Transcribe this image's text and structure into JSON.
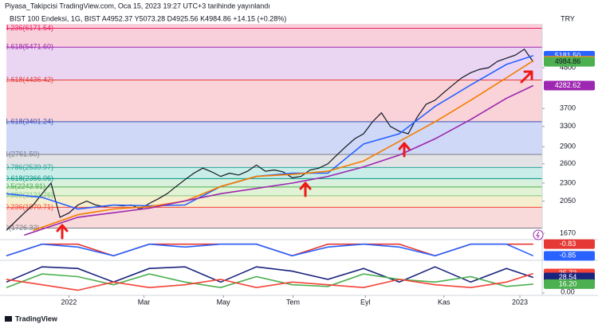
{
  "header": {
    "publisher": "Piyasa_Takipcisi TradingView.com, Oca 15, 2023 19:27 UTC+3 tarihinde yayınlandı",
    "symbol_line": "BIST 100 Endeksi, 1G, BIST A4952.37 Y5073.28 D4925.56 K4984.86 +14.15 (+0.28%)"
  },
  "footer": {
    "brand": "TradingView"
  },
  "chart_data": {
    "type": "line",
    "log_scale": true,
    "grid": false,
    "currency": "TRY",
    "xlim": [
      0,
      60
    ],
    "xticks": [
      {
        "value": 7,
        "label": "2022"
      },
      {
        "value": 15.4,
        "label": "Mar"
      },
      {
        "value": 24.3,
        "label": "May"
      },
      {
        "value": 32.1,
        "label": "Tem"
      },
      {
        "value": 40.2,
        "label": "Eyl"
      },
      {
        "value": 49,
        "label": "Kas"
      },
      {
        "value": 57.5,
        "label": "2023"
      }
    ],
    "ylim": [
      1612,
      6346
    ],
    "yticks": [
      1670,
      2050,
      2300,
      2600,
      2900,
      3300,
      3700,
      4800
    ],
    "fib_levels": [
      {
        "value": 6171.54,
        "label": "4.236(6171.54)",
        "color": "#e91e63",
        "band_color": "#f8d0db"
      },
      {
        "value": 5471.6,
        "label": "3.618(5471.60)",
        "color": "#9c27b0",
        "band_color": "#f8d0db"
      },
      {
        "value": 4436.42,
        "label": "2.618(4436.42)",
        "color": "#e53935",
        "band_color": "#ead6f3"
      },
      {
        "value": 3401.24,
        "label": "1.618(3401.24)",
        "color": "#3f51b5",
        "band_color": "#f9d3d8"
      },
      {
        "value": 2761.5,
        "label": "1(2761.50)",
        "color": "#787b86",
        "band_color": "#cfd8f7"
      },
      {
        "value": 2539.97,
        "label": "0.786(2539.97)",
        "color": "#26a69a",
        "band_color": "#e3e3e6"
      },
      {
        "value": 2366.06,
        "label": "0.618(2366.06)",
        "color": "#009688",
        "band_color": "#c9ede8"
      },
      {
        "value": 2243.91,
        "label": "0.5(2243.91)",
        "color": "#4caf50",
        "band_color": "#d8f0dc"
      },
      {
        "value": 2121.76,
        "label": "0.382(2121.76)",
        "color": "#81c784",
        "band_color": "#e2f2d4"
      },
      {
        "value": 1970.71,
        "label": "0.236(1970.71)",
        "color": "#f44336",
        "band_color": "#f6efcf"
      },
      {
        "value": 1726.32,
        "label": "0(1726.32)",
        "color": "#787b86",
        "band_color": "#f8dada"
      }
    ],
    "series": [
      {
        "color": "#131722",
        "x": [
          0,
          1,
          2,
          3,
          4,
          5,
          6,
          7,
          8,
          9,
          10,
          11,
          12,
          13,
          14,
          15,
          16,
          17,
          18,
          19,
          20,
          21,
          22,
          23,
          24,
          25,
          26,
          27,
          28,
          29,
          30,
          31,
          32,
          33,
          34,
          35,
          36,
          37,
          38,
          39,
          40,
          41,
          42,
          43,
          44,
          45,
          46,
          47,
          48,
          49,
          50,
          51,
          52,
          53,
          54,
          55,
          56,
          57,
          58,
          59
        ],
        "values": [
          1700,
          1800,
          1900,
          2000,
          2150,
          2300,
          1850,
          1900,
          2000,
          2050,
          2000,
          1980,
          2000,
          1990,
          2000,
          1950,
          2020,
          2080,
          2150,
          2250,
          2350,
          2450,
          2530,
          2470,
          2400,
          2450,
          2420,
          2480,
          2580,
          2480,
          2500,
          2470,
          2380,
          2400,
          2500,
          2530,
          2600,
          2750,
          2900,
          3050,
          3150,
          3400,
          3600,
          3300,
          3200,
          3150,
          3500,
          3800,
          3900,
          4100,
          4300,
          4500,
          4650,
          4750,
          4800,
          5000,
          5100,
          5200,
          5400,
          4985
        ]
      },
      {
        "color": "#2962ff",
        "x": [
          0,
          4,
          8,
          12,
          16,
          20,
          24,
          28,
          32,
          36,
          40,
          44,
          48,
          52,
          56,
          59
        ],
        "values": [
          2150,
          2100,
          1950,
          2000,
          1990,
          2000,
          2250,
          2400,
          2450,
          2450,
          2950,
          3150,
          3750,
          4300,
          4900,
          5181.5
        ]
      },
      {
        "color": "#f57c00",
        "x": [
          3,
          8,
          12,
          16,
          20,
          24,
          28,
          32,
          36,
          40,
          44,
          48,
          52,
          56,
          59
        ],
        "values": [
          1700,
          1880,
          1950,
          1980,
          2050,
          2250,
          2400,
          2430,
          2480,
          2650,
          3000,
          3400,
          3900,
          4500,
          5016.12
        ]
      },
      {
        "color": "#9c27b0",
        "x": [
          2,
          8,
          16,
          24,
          32,
          36,
          40,
          44,
          48,
          52,
          56,
          59
        ],
        "values": [
          1650,
          1850,
          1960,
          2150,
          2300,
          2400,
          2550,
          2750,
          3050,
          3450,
          3950,
          4282.62
        ]
      }
    ],
    "price_labels": [
      {
        "value": 5181.5,
        "label": "5181.50",
        "color": "#2962ff",
        "text_color": "#ffffff"
      },
      {
        "value": 5016.12,
        "label": "5016.12",
        "color": "#ff9800",
        "text_color": "#131722"
      },
      {
        "value": 4984.86,
        "label": "4984.86",
        "color": "#4caf50",
        "text_color": "#131722"
      },
      {
        "value": 4282.62,
        "label": "4282.62",
        "color": "#9c27b0",
        "text_color": "#ffffff"
      }
    ],
    "panes": [
      {
        "ylim": [
          -0.855,
          -0.825
        ],
        "yticks": [],
        "series": [
          {
            "color": "#e53935",
            "x": [
              0,
              4,
              8,
              12,
              16,
              20,
              24,
              28,
              32,
              36,
              40,
              44,
              48,
              52,
              56,
              59
            ],
            "values": [
              -0.85,
              -0.83,
              -0.83,
              -0.85,
              -0.83,
              -0.83,
              -0.83,
              -0.83,
              -0.85,
              -0.83,
              -0.83,
              -0.83,
              -0.85,
              -0.83,
              -0.83,
              -0.83
            ]
          },
          {
            "color": "#2962ff",
            "x": [
              0,
              4,
              8,
              12,
              16,
              20,
              24,
              28,
              32,
              36,
              40,
              44,
              48,
              52,
              56,
              59
            ],
            "values": [
              -0.85,
              -0.83,
              -0.835,
              -0.85,
              -0.83,
              -0.835,
              -0.83,
              -0.83,
              -0.85,
              -0.835,
              -0.83,
              -0.835,
              -0.85,
              -0.83,
              -0.83,
              -0.85
            ]
          }
        ],
        "price_labels": [
          {
            "value": -0.83,
            "label": "-0.83",
            "color": "#e53935",
            "text_color": "#ffffff"
          },
          {
            "value": -0.85,
            "label": "-0.85",
            "color": "#2962ff",
            "text_color": "#ffffff"
          }
        ]
      },
      {
        "ylim": [
          0,
          57
        ],
        "yticks": [
          {
            "value": 0,
            "label": "0.00"
          }
        ],
        "series": [
          {
            "color": "#1a237e",
            "x": [
              0,
              4,
              8,
              12,
              16,
              20,
              24,
              28,
              32,
              36,
              40,
              44,
              48,
              52,
              56,
              59
            ],
            "values": [
              20,
              48,
              45,
              20,
              45,
              48,
              20,
              48,
              40,
              25,
              45,
              20,
              48,
              20,
              45,
              28.54
            ]
          },
          {
            "color": "#4caf50",
            "x": [
              0,
              4,
              8,
              12,
              16,
              20,
              24,
              28,
              32,
              36,
              40,
              44,
              48,
              52,
              56,
              59
            ],
            "values": [
              10,
              35,
              30,
              15,
              35,
              20,
              10,
              30,
              15,
              12,
              35,
              25,
              20,
              30,
              12,
              16.2
            ]
          },
          {
            "color": "#f44336",
            "x": [
              0,
              4,
              8,
              12,
              16,
              20,
              24,
              28,
              32,
              36,
              40,
              44,
              48,
              52,
              56,
              59
            ],
            "values": [
              25,
              15,
              5,
              20,
              10,
              15,
              25,
              10,
              20,
              15,
              10,
              25,
              15,
              10,
              20,
              35.72
            ]
          }
        ],
        "price_labels": [
          {
            "value": 35.72,
            "label": "35.72",
            "color": "#f44336",
            "text_color": "#ffffff"
          },
          {
            "value": 28.54,
            "label": "28.54",
            "color": "#1a237e",
            "text_color": "#ffffff"
          },
          {
            "value": 16.2,
            "label": "16.20",
            "color": "#4caf50",
            "text_color": "#ffffff"
          }
        ]
      }
    ]
  }
}
